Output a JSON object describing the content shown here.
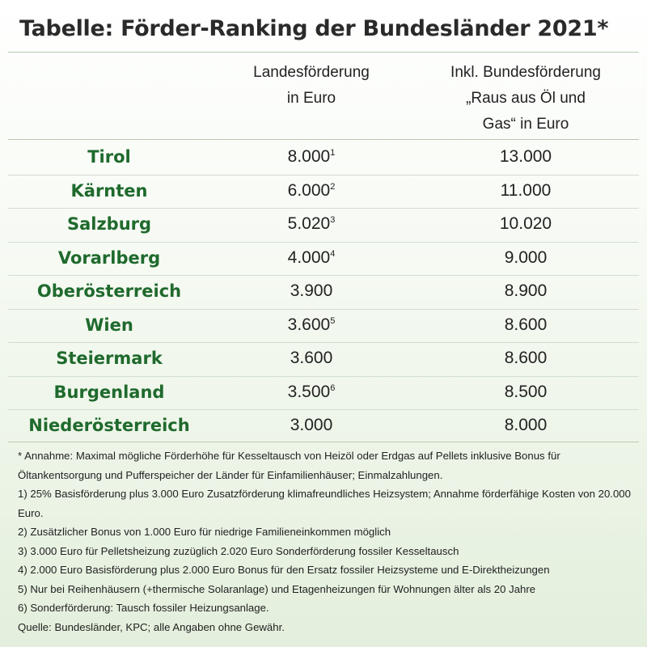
{
  "title": "Tabelle: Förder-Ranking der Bundesländer 2021*",
  "table": {
    "headers": [
      [
        "Landesförderung",
        "in Euro"
      ],
      [
        "Inkl. Bundesförderung",
        "„Raus aus Öl und",
        "Gas“ in Euro"
      ]
    ],
    "rows": [
      {
        "name": "Tirol",
        "landes": "8.000",
        "note": "1",
        "bundes": "13.000"
      },
      {
        "name": "Kärnten",
        "landes": "6.000",
        "note": "2",
        "bundes": "11.000"
      },
      {
        "name": "Salzburg",
        "landes": "5.020",
        "note": "3",
        "bundes": "10.020"
      },
      {
        "name": "Vorarlberg",
        "landes": "4.000",
        "note": "4",
        "bundes": "9.000"
      },
      {
        "name": "Oberösterreich",
        "landes": "3.900",
        "bundes": "8.900"
      },
      {
        "name": "Wien",
        "landes": "3.600",
        "note": "5",
        "bundes": "8.600"
      },
      {
        "name": "Steiermark",
        "landes": "3.600",
        "bundes": "8.600"
      },
      {
        "name": "Burgenland",
        "landes": "3.500",
        "note": "6",
        "bundes": "8.500"
      },
      {
        "name": "Niederösterreich",
        "landes": "3.000",
        "bundes": "8.000"
      }
    ]
  },
  "footnotes": [
    "* Annahme: Maximal mögliche Förderhöhe für Kesseltausch von Heizöl oder Erdgas auf Pellets inklusive Bonus für Öltankentsorgung und Pufferspeicher der Länder für Einfamilienhäuser; Einmalzahlungen.",
    "1) 25% Basisförderung plus 3.000 Euro Zusatzförderung klimafreundliches Heizsystem; Annahme förderfähige Kosten von 20.000 Euro.",
    "2) Zusätzlicher Bonus von 1.000 Euro für niedrige Familieneinkommen möglich",
    "3) 3.000 Euro für Pelletsheizung zuzüglich 2.020 Euro Sonderförderung fossiler Kesseltausch",
    "4) 2.000 Euro Basisförderung plus 2.000 Euro Bonus für den Ersatz fossiler Heizsysteme und E-Direktheizungen",
    "5) Nur bei Reihenhäusern (+thermische Solaranlage) und Etagenheizungen für Wohnungen älter als 20 Jahre",
    "6) Sonderförderung: Tausch fossiler Heizungsanlage."
  ],
  "source": "Quelle: Bundesländer, KPC; alle Angaben ohne Gewähr."
}
